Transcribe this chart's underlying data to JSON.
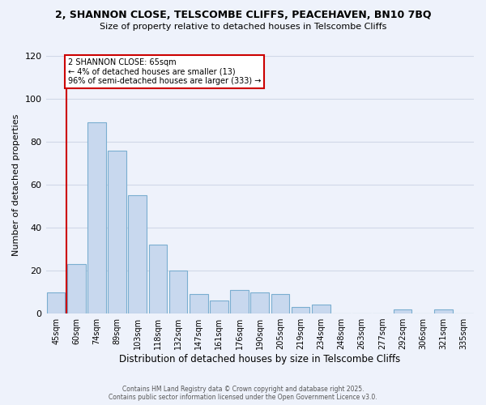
{
  "title": "2, SHANNON CLOSE, TELSCOMBE CLIFFS, PEACEHAVEN, BN10 7BQ",
  "subtitle": "Size of property relative to detached houses in Telscombe Cliffs",
  "xlabel": "Distribution of detached houses by size in Telscombe Cliffs",
  "ylabel": "Number of detached properties",
  "bin_labels": [
    "45sqm",
    "60sqm",
    "74sqm",
    "89sqm",
    "103sqm",
    "118sqm",
    "132sqm",
    "147sqm",
    "161sqm",
    "176sqm",
    "190sqm",
    "205sqm",
    "219sqm",
    "234sqm",
    "248sqm",
    "263sqm",
    "277sqm",
    "292sqm",
    "306sqm",
    "321sqm",
    "335sqm"
  ],
  "bar_values": [
    10,
    23,
    89,
    76,
    55,
    32,
    20,
    9,
    6,
    11,
    10,
    9,
    3,
    4,
    0,
    0,
    0,
    2,
    0,
    2,
    0
  ],
  "bar_color": "#c8d8ee",
  "bar_edge_color": "#7aaed0",
  "vline_color": "#cc0000",
  "ylim": [
    0,
    120
  ],
  "yticks": [
    0,
    20,
    40,
    60,
    80,
    100,
    120
  ],
  "annotation_title": "2 SHANNON CLOSE: 65sqm",
  "annotation_line1": "← 4% of detached houses are smaller (13)",
  "annotation_line2": "96% of semi-detached houses are larger (333) →",
  "annotation_box_color": "#ffffff",
  "annotation_box_edge": "#cc0000",
  "footer1": "Contains HM Land Registry data © Crown copyright and database right 2025.",
  "footer2": "Contains public sector information licensed under the Open Government Licence v3.0.",
  "background_color": "#eef2fb",
  "grid_color": "#d0d8e8"
}
